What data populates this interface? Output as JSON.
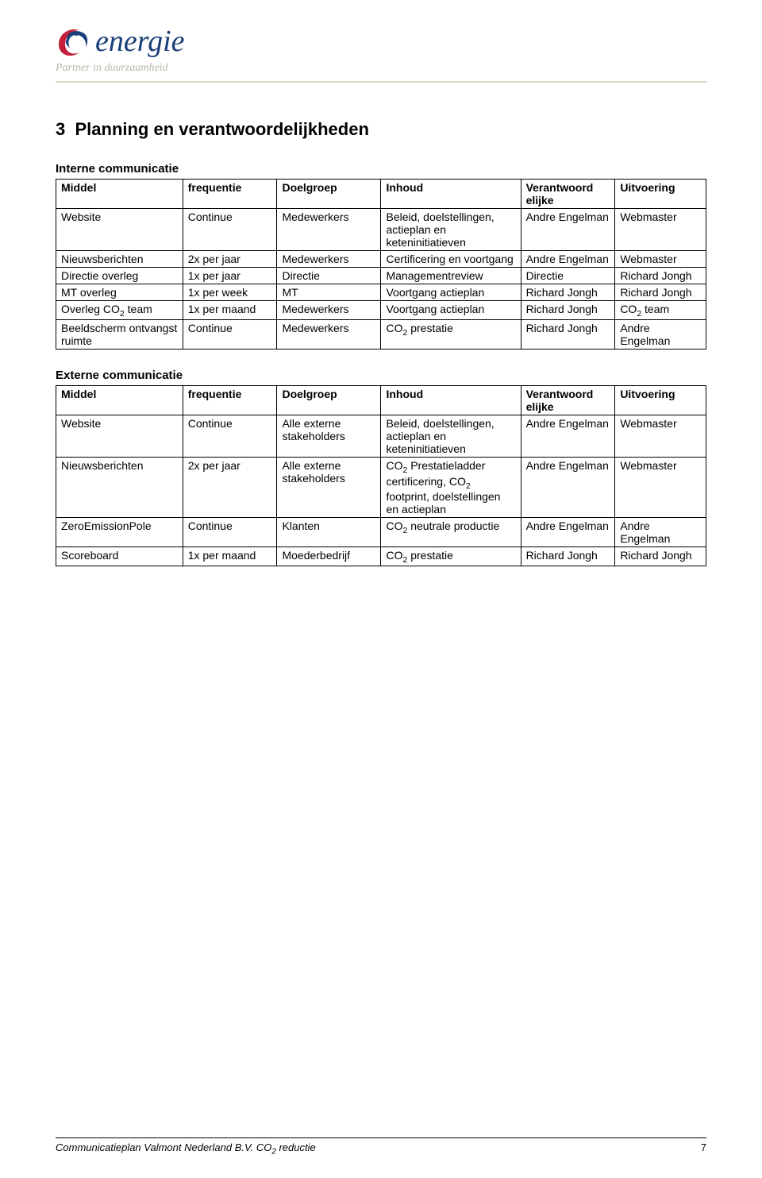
{
  "colors": {
    "logo_blue": "#1a3e7a",
    "logo_red": "#c41e3a",
    "tagline": "#b9b5a8",
    "hr": "#d8d4c8",
    "black": "#000000",
    "bg": "#ffffff"
  },
  "typography": {
    "body_family": "Arial",
    "body_size_pt": 11,
    "section_title_size_pt": 18,
    "section_title_weight": "bold",
    "table_header_weight": "bold"
  },
  "logo": {
    "text": "energie",
    "tagline": "Partner in duurzaamheid"
  },
  "section": {
    "number": "3",
    "title": "Planning en verantwoordelijkheden"
  },
  "headers": {
    "internal": "Interne communicatie",
    "external": "Externe communicatie"
  },
  "table_headers": {
    "middel": "Middel",
    "frequentie": "frequentie",
    "doelgroep": "Doelgroep",
    "inhoud": "Inhoud",
    "verantwoord": "Verantwoord\nelijke",
    "uitvoering": "Uitvoering"
  },
  "internal": [
    {
      "middel": "Website",
      "freq": "Continue",
      "doel": "Medewerkers",
      "inhoud": "Beleid, doelstellingen, actieplan en keteninitiatieven",
      "verant": "Andre Engelman",
      "uitv": "Webmaster"
    },
    {
      "middel": "Nieuwsberichten",
      "freq": "2x per jaar",
      "doel": "Medewerkers",
      "inhoud": "Certificering en voortgang",
      "verant": "Andre Engelman",
      "uitv": "Webmaster"
    },
    {
      "middel": "Directie overleg",
      "freq": "1x per jaar",
      "doel": "Directie",
      "inhoud": "Managementreview",
      "verant": "Directie",
      "uitv": "Richard Jongh"
    },
    {
      "middel": "MT overleg",
      "freq": "1x per week",
      "doel": "MT",
      "inhoud": "Voortgang actieplan",
      "verant": "Richard Jongh",
      "uitv": "Richard Jongh"
    },
    {
      "middel": "Overleg CO2 team",
      "freq": "1x per maand",
      "doel": "Medewerkers",
      "inhoud": "Voortgang actieplan",
      "verant": "Richard Jongh",
      "uitv": "CO2 team"
    },
    {
      "middel": "Beeldscherm ontvangst ruimte",
      "freq": "Continue",
      "doel": "Medewerkers",
      "inhoud": "CO₂ prestatie",
      "verant": "Richard Jongh",
      "uitv": "Andre Engelman"
    }
  ],
  "external": [
    {
      "middel": "Website",
      "freq": "Continue",
      "doel": "Alle externe stakeholders",
      "inhoud": "Beleid, doelstellingen, actieplan en keteninitiatieven",
      "verant": "Andre Engelman",
      "uitv": "Webmaster"
    },
    {
      "middel": "Nieuwsberichten",
      "freq": "2x per jaar",
      "doel": "Alle externe stakeholders",
      "inhoud": "CO₂ Prestatieladder certificering, CO₂ footprint, doelstellingen en actieplan",
      "verant": "Andre Engelman",
      "uitv": "Webmaster"
    },
    {
      "middel": "ZeroEmissionPole",
      "freq": "Continue",
      "doel": "Klanten",
      "inhoud": "CO₂ neutrale productie",
      "verant": "Andre Engelman",
      "uitv": "Andre Engelman"
    },
    {
      "middel": "Scoreboard",
      "freq": "1x per maand",
      "doel": "Moederbedrijf",
      "inhoud": "CO₂ prestatie",
      "verant": "Richard Jongh",
      "uitv": "Richard Jongh"
    }
  ],
  "footer": {
    "title": "Communicatieplan Valmont Nederland B.V. CO₂ reductie",
    "page": "7"
  }
}
